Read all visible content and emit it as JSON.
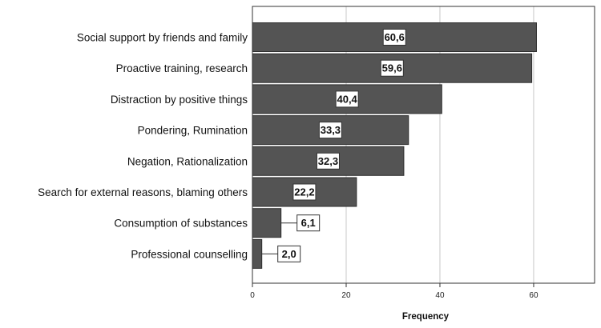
{
  "chart_data": {
    "type": "bar",
    "orientation": "horizontal",
    "categories": [
      "Social support by friends and family",
      "Proactive training, research",
      "Distraction by positive things",
      "Pondering, Rumination",
      "Negation, Rationalization",
      "Search for external reasons, blaming others",
      "Consumption of substances",
      "Professional counselling"
    ],
    "values": [
      60.6,
      59.6,
      40.4,
      33.3,
      32.3,
      22.2,
      6.1,
      2.0
    ],
    "data_labels": [
      "60,6",
      "59,6",
      "40,4",
      "33,3",
      "32,3",
      "22,2",
      "6,1",
      "2,0"
    ],
    "xlabel": "Frequency",
    "ylabel": "",
    "title": "",
    "xlim": [
      0,
      73
    ],
    "xticks": [
      0,
      20,
      40,
      60
    ],
    "xtick_labels": [
      "0",
      "20",
      "40",
      "60"
    ],
    "grid": "vertical",
    "legend": "none",
    "colors": {
      "bar": "#545454",
      "bar_edge": "#2e2e2e",
      "grid": "#c8c8c8",
      "axis": "#333333"
    }
  }
}
